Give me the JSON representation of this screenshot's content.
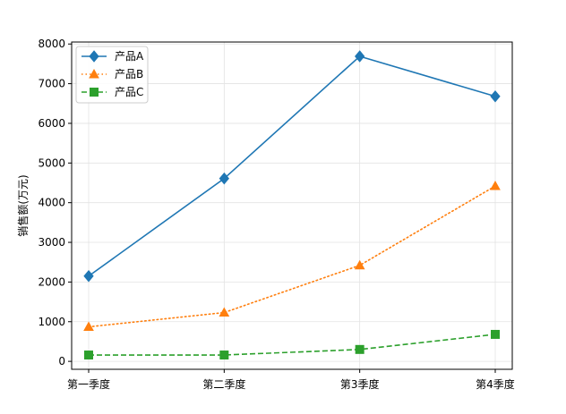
{
  "chart_data": {
    "type": "line",
    "categories": [
      "第一季度",
      "第二季度",
      "第3季度",
      "第4季度"
    ],
    "ylabel": "销售额(万元)",
    "xlabel": "",
    "title": "",
    "ylim": [
      -200,
      8050
    ],
    "yticks": [
      0,
      1000,
      2000,
      3000,
      4000,
      5000,
      6000,
      7000,
      8000
    ],
    "grid": true,
    "legend_position": "top-left",
    "series": [
      {
        "name": "产品A",
        "values": [
          2150,
          4610,
          7690,
          6680
        ],
        "color": "#1f77b4",
        "marker": "diamond",
        "linestyle": "solid"
      },
      {
        "name": "产品B",
        "values": [
          870,
          1230,
          2420,
          4420
        ],
        "color": "#ff7f0e",
        "marker": "triangle",
        "linestyle": "dotted"
      },
      {
        "name": "产品C",
        "values": [
          160,
          160,
          300,
          680
        ],
        "color": "#2ca02c",
        "marker": "square",
        "linestyle": "dashed"
      }
    ]
  }
}
